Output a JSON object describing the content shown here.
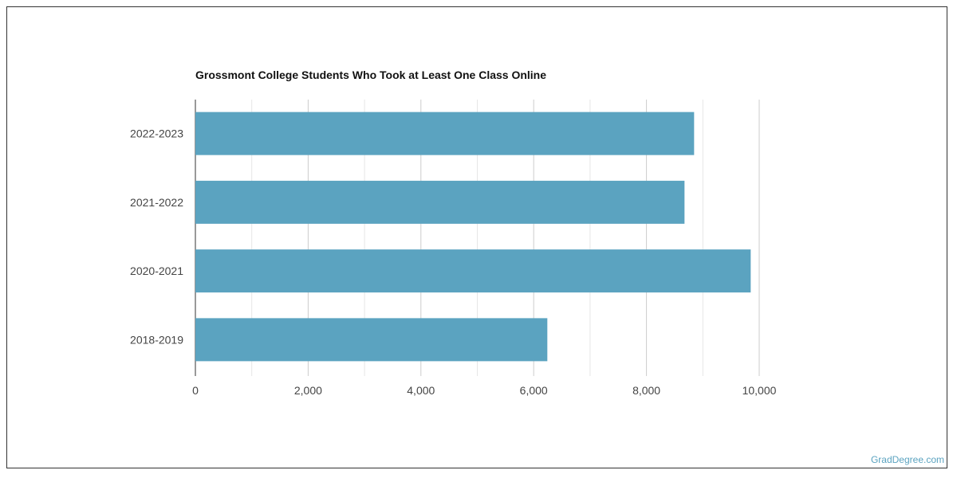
{
  "chart_data": {
    "type": "bar",
    "orientation": "horizontal",
    "title": "Grossmont College Students Who Took at Least One Class Online",
    "categories": [
      "2022-2023",
      "2021-2022",
      "2020-2021",
      "2018-2019"
    ],
    "values": [
      8845,
      8675,
      9849,
      6242
    ],
    "xlabel": "",
    "ylabel": "",
    "xlim": [
      0,
      11000
    ],
    "x_ticks": [
      "0",
      "2,000",
      "4,000",
      "6,000",
      "8,000",
      "10,000"
    ],
    "grid": true,
    "bar_color": "#5ba3c0"
  },
  "credit": "GradDegree.com"
}
